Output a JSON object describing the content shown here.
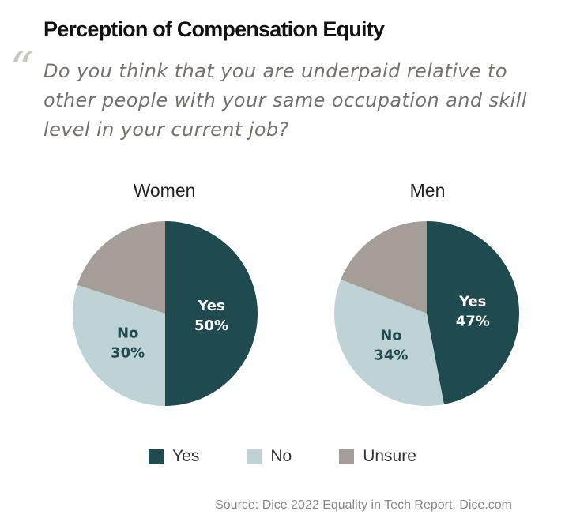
{
  "title": "Perception of Compensation Equity",
  "quote_mark": "“",
  "subtitle": "Do you think that you are underpaid relative to other people with your same occupation and skill level in your current job?",
  "source": "Source: Dice 2022 Equality in Tech Report, Dice.com",
  "colors": {
    "Yes": "#1e4a50",
    "No": "#bfd3d7",
    "Unsure": "#a59e98"
  },
  "chart_data": [
    {
      "type": "pie",
      "title": "Women",
      "slices": [
        {
          "label": "Yes",
          "value": 50,
          "display": "50%"
        },
        {
          "label": "No",
          "value": 30,
          "display": "30%"
        },
        {
          "label": "Unsure",
          "value": 20,
          "display": ""
        }
      ],
      "legend": [
        "Yes",
        "No",
        "Unsure"
      ],
      "legend_position": "bottom"
    },
    {
      "type": "pie",
      "title": "Men",
      "slices": [
        {
          "label": "Yes",
          "value": 47,
          "display": "47%"
        },
        {
          "label": "No",
          "value": 34,
          "display": "34%"
        },
        {
          "label": "Unsure",
          "value": 19,
          "display": ""
        }
      ],
      "legend": [
        "Yes",
        "No",
        "Unsure"
      ],
      "legend_position": "bottom"
    }
  ],
  "legend": [
    {
      "label": "Yes"
    },
    {
      "label": "No"
    },
    {
      "label": "Unsure"
    }
  ]
}
